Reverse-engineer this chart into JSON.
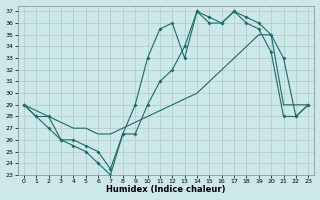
{
  "xlabel": "Humidex (Indice chaleur)",
  "xlim": [
    -0.5,
    23.5
  ],
  "ylim": [
    23,
    37.5
  ],
  "xticks": [
    0,
    1,
    2,
    3,
    4,
    5,
    6,
    7,
    8,
    9,
    10,
    11,
    12,
    13,
    14,
    15,
    16,
    17,
    18,
    19,
    20,
    21,
    22,
    23
  ],
  "yticks": [
    23,
    24,
    25,
    26,
    27,
    28,
    29,
    30,
    31,
    32,
    33,
    34,
    35,
    36,
    37
  ],
  "background_color": "#cce8e8",
  "grid_color": "#b0c8c8",
  "line_color": "#1a6b6b",
  "line1_x": [
    0,
    1,
    2,
    3,
    4,
    5,
    6,
    7,
    8,
    9,
    10,
    11,
    12,
    13,
    14,
    15,
    16,
    17,
    18,
    19,
    20,
    21,
    22,
    23
  ],
  "line1_y": [
    29,
    28,
    27,
    26,
    25.5,
    25,
    24,
    23,
    26.5,
    26.5,
    29,
    31,
    32,
    34,
    37,
    36.5,
    36,
    37,
    36.5,
    36,
    35,
    33,
    28,
    29
  ],
  "line2_x": [
    0,
    1,
    2,
    3,
    4,
    5,
    6,
    7,
    8,
    9,
    10,
    11,
    12,
    13,
    14,
    15,
    16,
    17,
    18,
    19,
    20,
    21,
    22,
    23
  ],
  "line2_y": [
    29,
    28.5,
    28,
    27.5,
    27,
    27,
    26.5,
    26.5,
    27,
    27.5,
    28,
    28.5,
    29,
    29.5,
    30,
    31,
    32,
    33,
    34,
    35,
    35,
    29,
    29,
    29
  ],
  "line3_x": [
    0,
    1,
    2,
    3,
    4,
    5,
    6,
    7,
    8,
    9,
    10,
    11,
    12,
    13,
    14,
    15,
    16,
    17,
    18,
    19,
    20,
    21,
    22,
    23
  ],
  "line3_y": [
    29,
    28,
    28,
    26,
    26,
    25.5,
    25,
    23.5,
    26.5,
    29,
    33,
    35.5,
    36,
    33,
    37,
    36,
    36,
    37,
    36,
    35.5,
    33.5,
    28,
    28,
    29
  ]
}
